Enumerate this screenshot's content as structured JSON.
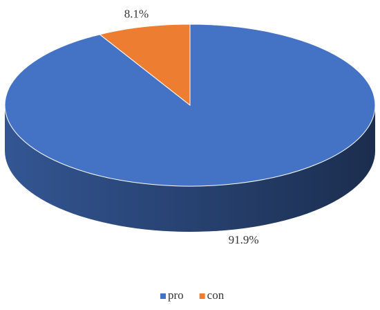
{
  "chart_data": {
    "type": "pie3d",
    "categories": [
      "pro",
      "con"
    ],
    "values": [
      91.9,
      8.1
    ],
    "value_labels": [
      "91.9%",
      "8.1%"
    ],
    "colors": [
      "#4472c4",
      "#ed7d31"
    ],
    "legend": "bottom"
  }
}
